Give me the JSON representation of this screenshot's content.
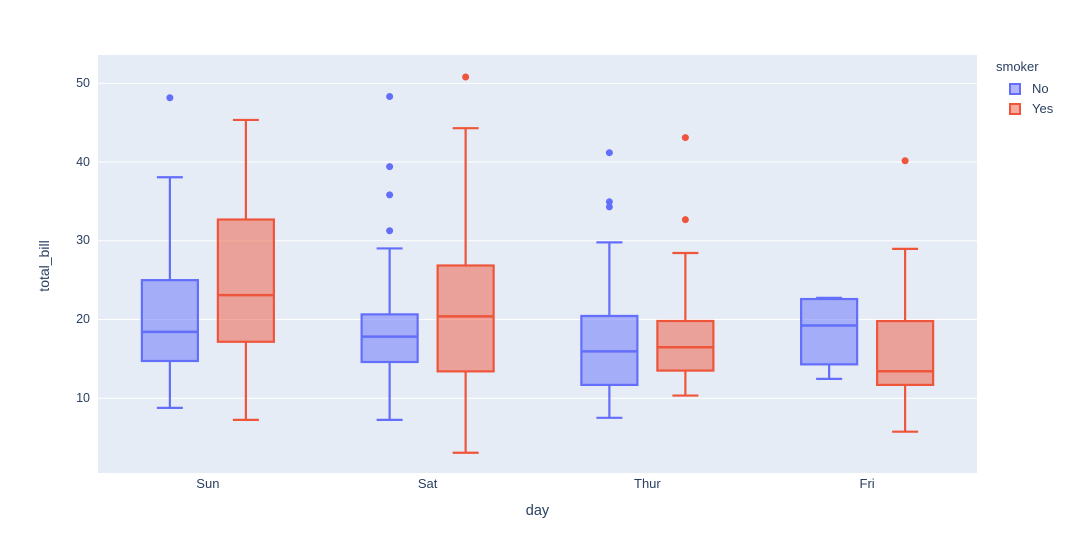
{
  "figure": {
    "background": "#ffffff",
    "plot_background": "#e5ecf6",
    "grid_color": "#ffffff",
    "text_color": "#2a3f5f"
  },
  "chart_data": {
    "type": "box",
    "title": "",
    "xlabel": "day",
    "ylabel": "total_bill",
    "categories": [
      "Sun",
      "Sat",
      "Thur",
      "Fri"
    ],
    "yticks": [
      10,
      20,
      30,
      40,
      50
    ],
    "ylim": [
      0.5,
      53.6
    ],
    "grid": true,
    "legend": {
      "title": "smoker",
      "position": "top-right"
    },
    "series": [
      {
        "name": "No",
        "color": "#636efa",
        "boxes": [
          {
            "category": "Sun",
            "low": 8.77,
            "q1": 14.73,
            "median": 18.43,
            "q3": 25.0,
            "high": 38.07,
            "outliers": [
              48.17
            ]
          },
          {
            "category": "Sat",
            "low": 7.25,
            "q1": 14.6,
            "median": 17.82,
            "q3": 20.65,
            "high": 29.03,
            "outliers": [
              48.33,
              39.42,
              35.83,
              31.27
            ]
          },
          {
            "category": "Thur",
            "low": 7.51,
            "q1": 11.69,
            "median": 15.95,
            "q3": 20.45,
            "high": 29.8,
            "outliers": [
              41.19,
              34.95,
              34.3
            ]
          },
          {
            "category": "Fri",
            "low": 12.46,
            "q1": 14.3,
            "median": 19.24,
            "q3": 22.6,
            "high": 22.75,
            "outliers": []
          }
        ]
      },
      {
        "name": "Yes",
        "color": "#ef553b",
        "boxes": [
          {
            "category": "Sun",
            "low": 7.25,
            "q1": 17.17,
            "median": 23.1,
            "q3": 32.7,
            "high": 45.35,
            "outliers": []
          },
          {
            "category": "Sat",
            "low": 3.07,
            "q1": 13.41,
            "median": 20.39,
            "q3": 26.86,
            "high": 44.3,
            "outliers": [
              50.81
            ]
          },
          {
            "category": "Thur",
            "low": 10.34,
            "q1": 13.51,
            "median": 16.47,
            "q3": 19.81,
            "high": 28.45,
            "outliers": [
              43.11,
              32.68
            ]
          },
          {
            "category": "Fri",
            "low": 5.75,
            "q1": 11.69,
            "median": 13.42,
            "q3": 19.8,
            "high": 28.97,
            "outliers": [
              40.17
            ]
          }
        ]
      }
    ]
  }
}
